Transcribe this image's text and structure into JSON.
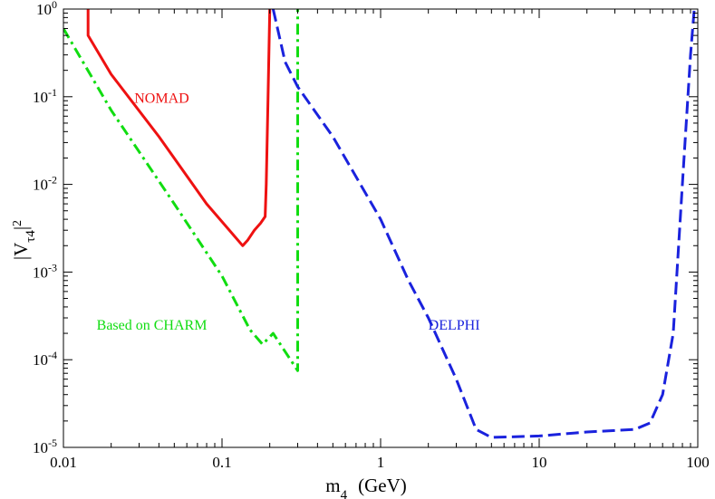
{
  "chart_data": {
    "type": "line",
    "title": "",
    "xscale": "log",
    "yscale": "log",
    "xlim": [
      0.01,
      100
    ],
    "ylim": [
      1e-05,
      1
    ],
    "xlabel": {
      "base": "m",
      "sub": "4",
      "unit": "(GeV)"
    },
    "ylabel": {
      "prefix": "|V",
      "sub": "τ4",
      "suffix": "|",
      "sup": "2"
    },
    "x_ticks": [
      {
        "value": 0.01,
        "label": "0.01"
      },
      {
        "value": 0.1,
        "label": "0.1"
      },
      {
        "value": 1,
        "label": "1"
      },
      {
        "value": 10,
        "label": "10"
      },
      {
        "value": 100,
        "label": "100"
      }
    ],
    "y_ticks": [
      {
        "value": 1e-05,
        "base": "10",
        "exp": "-5"
      },
      {
        "value": 0.0001,
        "base": "10",
        "exp": "-4"
      },
      {
        "value": 0.001,
        "base": "10",
        "exp": "-3"
      },
      {
        "value": 0.01,
        "base": "10",
        "exp": "-2"
      },
      {
        "value": 0.1,
        "base": "10",
        "exp": "-1"
      },
      {
        "value": 1,
        "base": "10",
        "exp": "0"
      }
    ],
    "series": [
      {
        "name": "NOMAD",
        "label": "NOMAD",
        "color": "#ee1111",
        "style": "solid",
        "label_at": [
          0.028,
          0.085
        ],
        "points": [
          [
            0.0143,
            1.0
          ],
          [
            0.0143,
            0.5
          ],
          [
            0.02,
            0.18
          ],
          [
            0.04,
            0.035
          ],
          [
            0.08,
            0.006
          ],
          [
            0.135,
            0.002
          ],
          [
            0.145,
            0.0023
          ],
          [
            0.16,
            0.003
          ],
          [
            0.175,
            0.0036
          ],
          [
            0.187,
            0.0043
          ],
          [
            0.19,
            0.01
          ],
          [
            0.195,
            0.1
          ],
          [
            0.2,
            1.0
          ]
        ]
      },
      {
        "name": "Based on CHARM",
        "label": "Based on CHARM",
        "color": "#11dd11",
        "style": "dashdot",
        "label_at": [
          0.0162,
          0.00022
        ],
        "points": [
          [
            0.01,
            0.6
          ],
          [
            0.02,
            0.07
          ],
          [
            0.05,
            0.006
          ],
          [
            0.1,
            0.0009
          ],
          [
            0.15,
            0.00022
          ],
          [
            0.18,
            0.00015
          ],
          [
            0.21,
            0.0002
          ],
          [
            0.3,
            7.5e-05
          ],
          [
            0.3,
            1.0
          ]
        ]
      },
      {
        "name": "DELPHI",
        "label": "DELPHI",
        "color": "#1a22dd",
        "style": "dashed",
        "label_at": [
          2.0,
          0.00022
        ],
        "points": [
          [
            0.21,
            1.0
          ],
          [
            0.25,
            0.25
          ],
          [
            0.3,
            0.13
          ],
          [
            0.5,
            0.035
          ],
          [
            1.0,
            0.004
          ],
          [
            1.5,
            0.0008
          ],
          [
            2.0,
            0.0003
          ],
          [
            3.0,
            6e-05
          ],
          [
            4.0,
            1.6e-05
          ],
          [
            5.0,
            1.3e-05
          ],
          [
            10.0,
            1.35e-05
          ],
          [
            20.0,
            1.5e-05
          ],
          [
            40.0,
            1.6e-05
          ],
          [
            50.0,
            1.9e-05
          ],
          [
            60.0,
            4e-05
          ],
          [
            70.0,
            0.0002
          ],
          [
            80.0,
            0.01
          ],
          [
            90.0,
            0.3
          ],
          [
            95.0,
            1.0
          ]
        ]
      }
    ]
  }
}
